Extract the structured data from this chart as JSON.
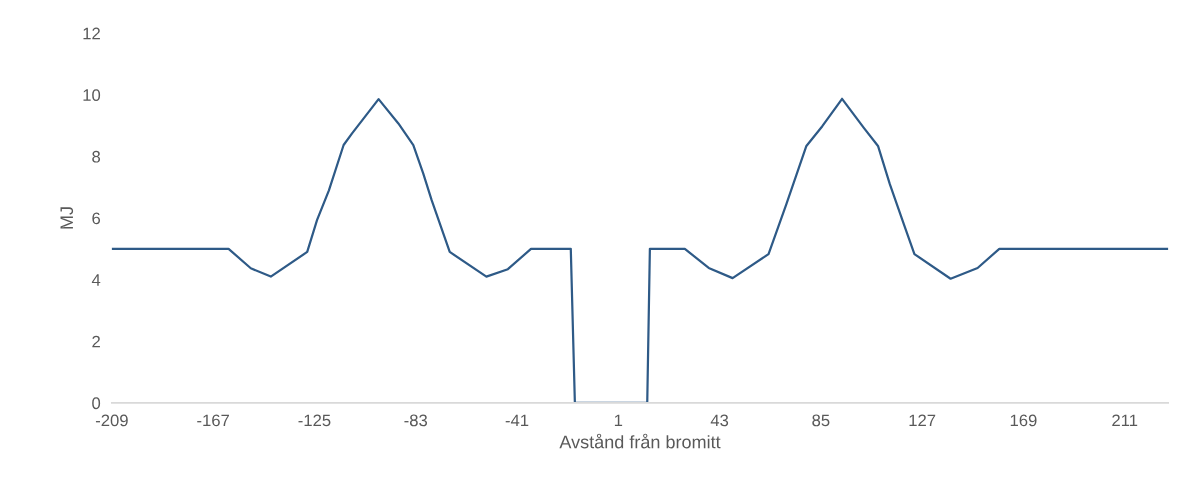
{
  "chart_data": {
    "type": "line",
    "xlabel": "Avstånd från bromitt",
    "ylabel": "MJ",
    "x": [
      -209,
      -160.6,
      -151.4,
      -143.1,
      -128,
      -123.9,
      -119,
      -112.9,
      -109.4,
      -98.4,
      -90.2,
      -84,
      -79.9,
      -76.4,
      -68.9,
      -53.7,
      -44.8,
      -35.2,
      -18.7,
      -17,
      13,
      14.1,
      28.6,
      38.5,
      48.4,
      63.3,
      70.7,
      79,
      85.6,
      93.8,
      102.9,
      108.7,
      113.6,
      119.4,
      123.8,
      138.8,
      150,
      159,
      229
    ],
    "series": [
      {
        "color": "#2e5a87",
        "values": [
          5.0,
          5.0,
          4.37,
          4.1,
          4.9,
          5.94,
          6.9,
          8.37,
          8.75,
          9.86,
          9.07,
          8.37,
          7.45,
          6.58,
          4.9,
          4.1,
          4.34,
          5.0,
          5.0,
          0,
          0,
          5.0,
          5.0,
          4.38,
          4.05,
          4.83,
          6.45,
          8.34,
          8.98,
          9.87,
          8.92,
          8.34,
          7.1,
          5.8,
          4.83,
          4.03,
          4.38,
          5.0,
          5.0
        ]
      }
    ],
    "xlim": [
      -209,
      229
    ],
    "xticks": [
      -209,
      -167,
      -125,
      -83,
      -41,
      1,
      43,
      85,
      127,
      169,
      211
    ],
    "ylim": [
      0,
      12
    ],
    "yticks": [
      0,
      2,
      4,
      6,
      8,
      10,
      12
    ],
    "grid": false,
    "legend": false,
    "marker": "none",
    "line_style": "solid"
  }
}
